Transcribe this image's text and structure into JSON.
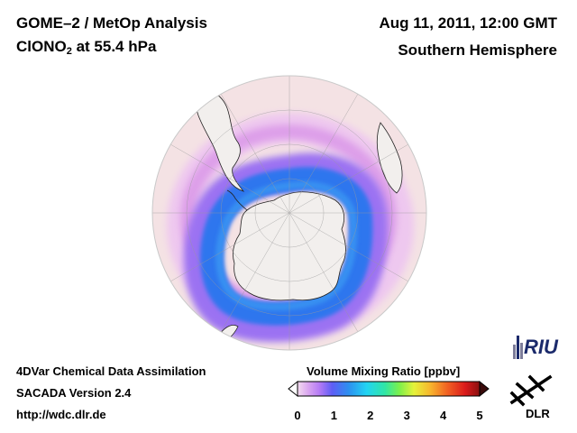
{
  "header": {
    "title": "GOME–2 / MetOp Analysis",
    "species": "ClONO",
    "species_sub": "2",
    "species_level": " at 55.4 hPa",
    "datetime": "Aug 11, 2011, 12:00 GMT",
    "hemisphere": "Southern Hemisphere"
  },
  "footer": {
    "line1": "4DVar Chemical Data Assimilation",
    "line2": "SACADA Version 2.4",
    "line3": "http://wdc.dlr.de"
  },
  "colorbar": {
    "title": "Volume Mixing Ratio [ppbv]",
    "ticks": [
      "0",
      "1",
      "2",
      "3",
      "4",
      "5"
    ],
    "range": [
      0,
      5
    ],
    "colors": [
      "#f4dcef",
      "#d9a5f0",
      "#b57bf5",
      "#5e5ef5",
      "#2d8ff0",
      "#22d4f2",
      "#30e6a6",
      "#7df04a",
      "#e6f23a",
      "#f7b52d",
      "#f26423",
      "#db1b1b",
      "#8a1010"
    ]
  },
  "logos": {
    "riu": "RIU",
    "dlr": "DLR"
  },
  "map_colors": {
    "ocean": "#f4e2e4",
    "land": "#f1eeec",
    "low_band": "#e7b8ec",
    "mid_band": "#8d6cf3",
    "high_band": "#2f77ee"
  }
}
